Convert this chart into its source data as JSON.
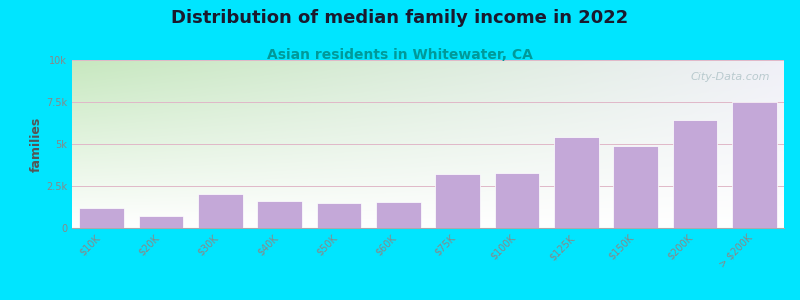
{
  "title": "Distribution of median family income in 2022",
  "subtitle": "Asian residents in Whitewater, CA",
  "categories": [
    "$10K",
    "$20K",
    "$30K",
    "$40K",
    "$50K",
    "$60K",
    "$75K",
    "$100K",
    "$125K",
    "$150K",
    "$200K",
    "> $200K"
  ],
  "values": [
    1200,
    700,
    2000,
    1600,
    1500,
    1550,
    3200,
    3300,
    5400,
    4900,
    6400,
    7500
  ],
  "bar_color": "#c4a8d8",
  "bar_edgecolor": "#ffffff",
  "title_fontsize": 13,
  "subtitle_fontsize": 10,
  "subtitle_color": "#009999",
  "ylabel": "families",
  "ylabel_color": "#555555",
  "ylabel_fontsize": 9,
  "tick_color": "#888888",
  "tick_fontsize": 7,
  "background_outer": "#00e5ff",
  "background_plot_topleft": "#c8e8c0",
  "background_plot_topright": "#e0f0f8",
  "background_plot_bottom": "#ffffff",
  "ylim": [
    0,
    10000
  ],
  "yticks": [
    0,
    2500,
    5000,
    7500,
    10000
  ],
  "ytick_labels": [
    "0",
    "2.5k",
    "5k",
    "7.5k",
    "10k"
  ],
  "grid_color": "#e0b8c8",
  "watermark": "City-Data.com",
  "watermark_color": "#b0c4c8",
  "watermark_fontsize": 8
}
